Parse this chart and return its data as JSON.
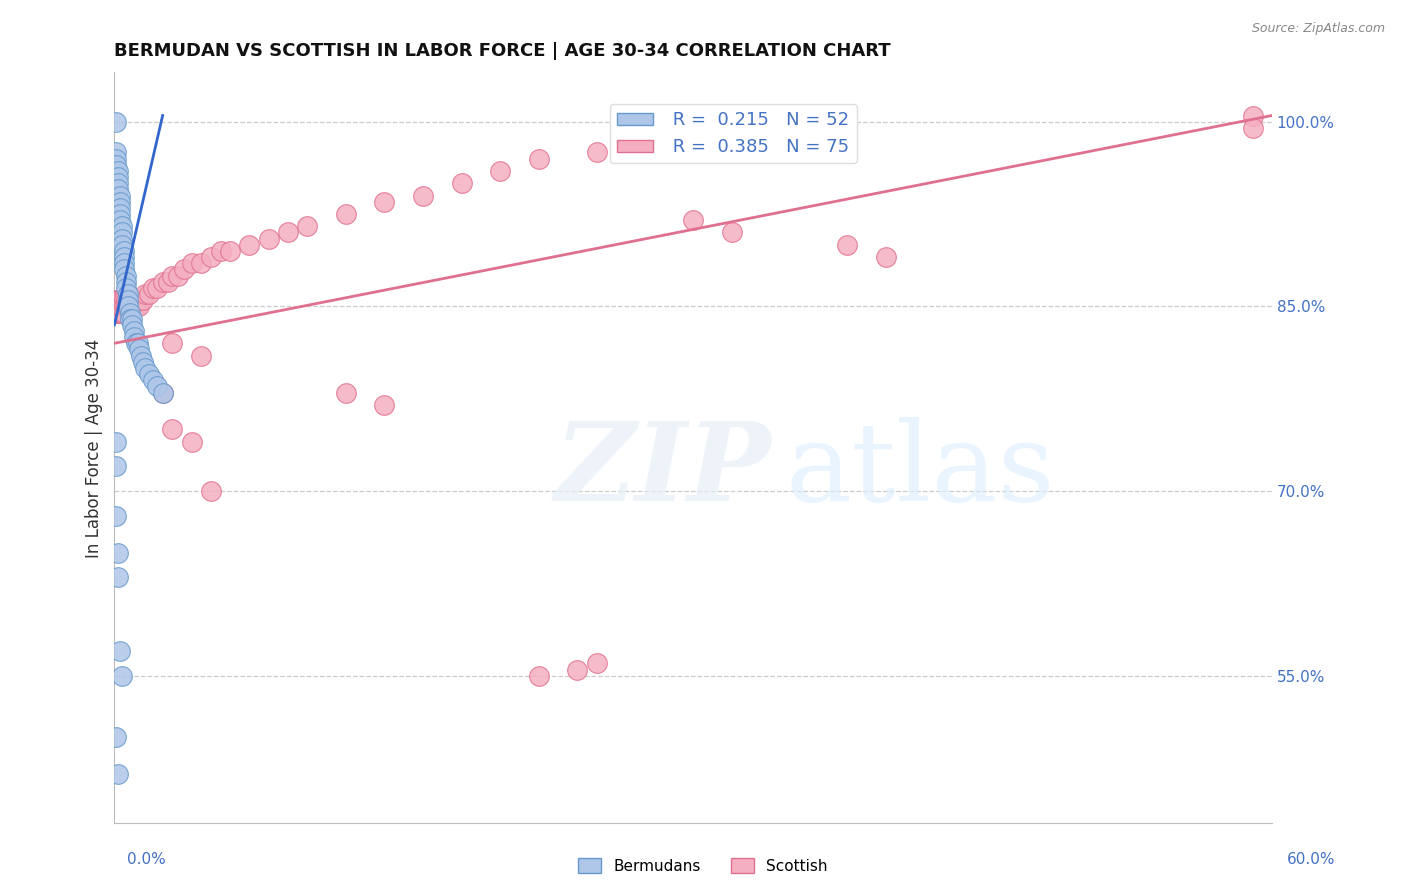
{
  "title": "BERMUDAN VS SCOTTISH IN LABOR FORCE | AGE 30-34 CORRELATION CHART",
  "source": "Source: ZipAtlas.com",
  "ylabel": "In Labor Force | Age 30-34",
  "right_yticks": [
    "55.0%",
    "70.0%",
    "85.0%",
    "100.0%"
  ],
  "right_ytick_vals": [
    0.55,
    0.7,
    0.85,
    1.0
  ],
  "xlim": [
    0.0,
    0.6
  ],
  "ylim": [
    0.43,
    1.04
  ],
  "bermudans_color": "#aec6e8",
  "bermudans_edge": "#6699cc",
  "scottish_color": "#f4afc0",
  "scottish_edge": "#e07090",
  "bermudans_line_color": "#3366cc",
  "scottish_line_color": "#e07090",
  "R_bermudans": 0.215,
  "N_bermudans": 52,
  "R_scottish": 0.385,
  "N_scottish": 75,
  "background_color": "#ffffff",
  "grid_color": "#cccccc",
  "bermudans_x": [
    0.001,
    0.001,
    0.001,
    0.001,
    0.002,
    0.002,
    0.002,
    0.002,
    0.003,
    0.003,
    0.003,
    0.003,
    0.003,
    0.004,
    0.004,
    0.004,
    0.004,
    0.005,
    0.005,
    0.005,
    0.005,
    0.006,
    0.006,
    0.006,
    0.007,
    0.007,
    0.007,
    0.008,
    0.008,
    0.009,
    0.009,
    0.01,
    0.01,
    0.011,
    0.012,
    0.013,
    0.014,
    0.015,
    0.016,
    0.018,
    0.02,
    0.022,
    0.025,
    0.001,
    0.001,
    0.001,
    0.002,
    0.002,
    0.003,
    0.004,
    0.001,
    0.002
  ],
  "bermudans_y": [
    1.0,
    0.975,
    0.97,
    0.965,
    0.96,
    0.955,
    0.95,
    0.945,
    0.94,
    0.935,
    0.93,
    0.925,
    0.92,
    0.915,
    0.91,
    0.905,
    0.9,
    0.895,
    0.89,
    0.885,
    0.88,
    0.875,
    0.87,
    0.865,
    0.86,
    0.855,
    0.85,
    0.845,
    0.84,
    0.84,
    0.835,
    0.83,
    0.825,
    0.82,
    0.82,
    0.815,
    0.81,
    0.805,
    0.8,
    0.795,
    0.79,
    0.785,
    0.78,
    0.74,
    0.72,
    0.68,
    0.65,
    0.63,
    0.57,
    0.55,
    0.5,
    0.47
  ],
  "scottish_x": [
    0.001,
    0.001,
    0.001,
    0.002,
    0.002,
    0.002,
    0.003,
    0.003,
    0.003,
    0.004,
    0.004,
    0.004,
    0.005,
    0.005,
    0.005,
    0.006,
    0.006,
    0.007,
    0.007,
    0.008,
    0.008,
    0.009,
    0.009,
    0.01,
    0.011,
    0.012,
    0.013,
    0.014,
    0.015,
    0.016,
    0.018,
    0.02,
    0.022,
    0.025,
    0.028,
    0.03,
    0.033,
    0.036,
    0.04,
    0.045,
    0.05,
    0.055,
    0.06,
    0.07,
    0.08,
    0.09,
    0.1,
    0.12,
    0.14,
    0.16,
    0.18,
    0.2,
    0.22,
    0.25,
    0.28,
    0.3,
    0.33,
    0.36,
    0.03,
    0.045,
    0.3,
    0.32,
    0.38,
    0.4,
    0.12,
    0.14,
    0.03,
    0.04,
    0.05,
    0.025,
    0.22,
    0.24,
    0.25,
    0.59,
    0.59
  ],
  "scottish_y": [
    0.855,
    0.85,
    0.845,
    0.855,
    0.85,
    0.845,
    0.855,
    0.85,
    0.845,
    0.855,
    0.85,
    0.845,
    0.855,
    0.85,
    0.845,
    0.855,
    0.85,
    0.855,
    0.85,
    0.855,
    0.85,
    0.855,
    0.85,
    0.855,
    0.85,
    0.855,
    0.85,
    0.855,
    0.855,
    0.86,
    0.86,
    0.865,
    0.865,
    0.87,
    0.87,
    0.875,
    0.875,
    0.88,
    0.885,
    0.885,
    0.89,
    0.895,
    0.895,
    0.9,
    0.905,
    0.91,
    0.915,
    0.925,
    0.935,
    0.94,
    0.95,
    0.96,
    0.97,
    0.975,
    0.985,
    0.99,
    0.995,
    1.0,
    0.82,
    0.81,
    0.92,
    0.91,
    0.9,
    0.89,
    0.78,
    0.77,
    0.75,
    0.74,
    0.7,
    0.78,
    0.55,
    0.555,
    0.56,
    1.005,
    0.995
  ],
  "berm_trend_x": [
    0.0,
    0.025
  ],
  "berm_trend_y": [
    0.835,
    1.005
  ],
  "scot_trend_x": [
    0.0,
    0.6
  ],
  "scot_trend_y": [
    0.82,
    1.005
  ]
}
